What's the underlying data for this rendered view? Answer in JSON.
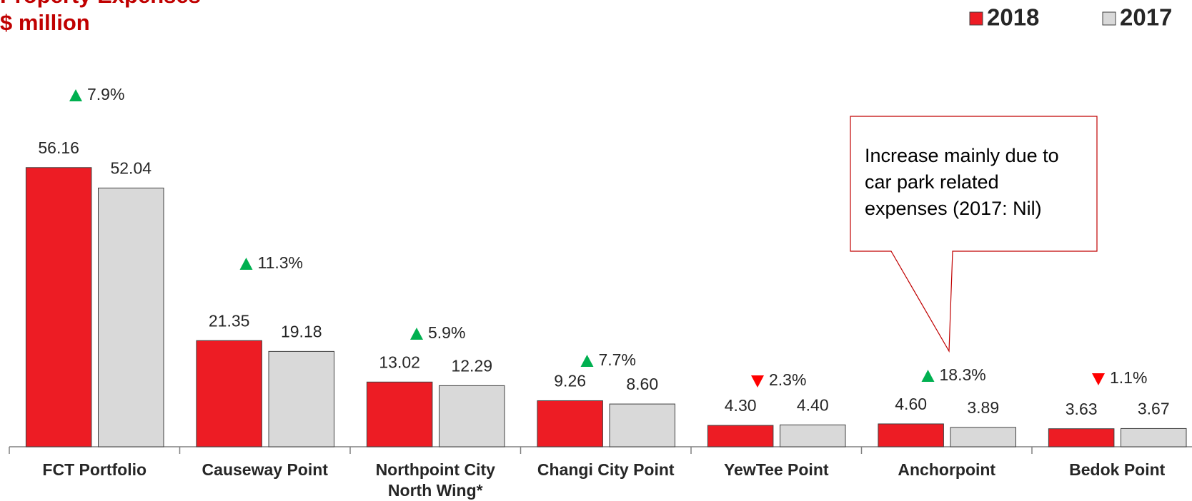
{
  "chart_data": {
    "type": "bar",
    "title": "Property Expenses",
    "subtitle": "$ million",
    "categories": [
      "FCT Portfolio",
      "Causeway Point",
      "Northpoint City North Wing*",
      "Changi City Point",
      "YewTee Point",
      "Anchorpoint",
      "Bedok Point"
    ],
    "series": [
      {
        "name": "2018",
        "color": "#ed1c24",
        "values": [
          56.16,
          21.35,
          13.02,
          9.26,
          4.3,
          4.6,
          3.63
        ],
        "value_labels": [
          "56.16",
          "21.35",
          "13.02",
          "9.26",
          "4.30",
          "4.60",
          "3.63"
        ]
      },
      {
        "name": "2017",
        "color": "#d9d9d9",
        "values": [
          52.04,
          19.18,
          12.29,
          8.6,
          4.4,
          3.89,
          3.67
        ],
        "value_labels": [
          "52.04",
          "19.18",
          "12.29",
          "8.60",
          "4.40",
          "3.89",
          "3.67"
        ]
      }
    ],
    "changes": [
      7.9,
      11.3,
      5.9,
      7.7,
      -2.3,
      18.3,
      -1.1
    ],
    "change_labels": [
      "7.9%",
      "11.3%",
      "5.9%",
      "7.7%",
      "2.3%",
      "18.3%",
      "1.1%"
    ],
    "annotation": "Increase mainly due to car park related expenses (2017: Nil)",
    "ylim": [
      0,
      60
    ],
    "legend": "top-right"
  }
}
